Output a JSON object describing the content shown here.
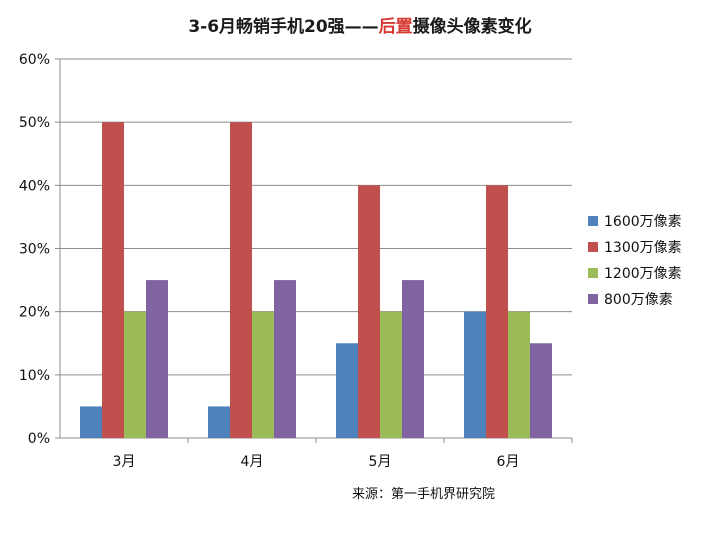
{
  "chart_data": {
    "type": "bar",
    "title_parts": [
      "3-6月畅销手机20强——",
      "后置",
      "摄像头像素变化"
    ],
    "categories": [
      "3月",
      "4月",
      "5月",
      "6月"
    ],
    "series": [
      {
        "name": "1600万像素",
        "values": [
          5,
          5,
          15,
          20
        ],
        "color": "#4f81bd"
      },
      {
        "name": "1300万像素",
        "values": [
          50,
          50,
          40,
          40
        ],
        "color": "#c0504d"
      },
      {
        "name": "1200万像素",
        "values": [
          20,
          20,
          20,
          20
        ],
        "color": "#9bbb59"
      },
      {
        "name": "800万像素",
        "values": [
          25,
          25,
          25,
          15
        ],
        "color": "#8064a2"
      }
    ],
    "ylim": [
      0,
      60
    ],
    "yticks": [
      "0%",
      "10%",
      "20%",
      "30%",
      "40%",
      "50%",
      "60%"
    ],
    "grid": true,
    "legend_position": "right",
    "source": "来源：第一手机界研究院",
    "highlight_color": "#d63a32"
  }
}
